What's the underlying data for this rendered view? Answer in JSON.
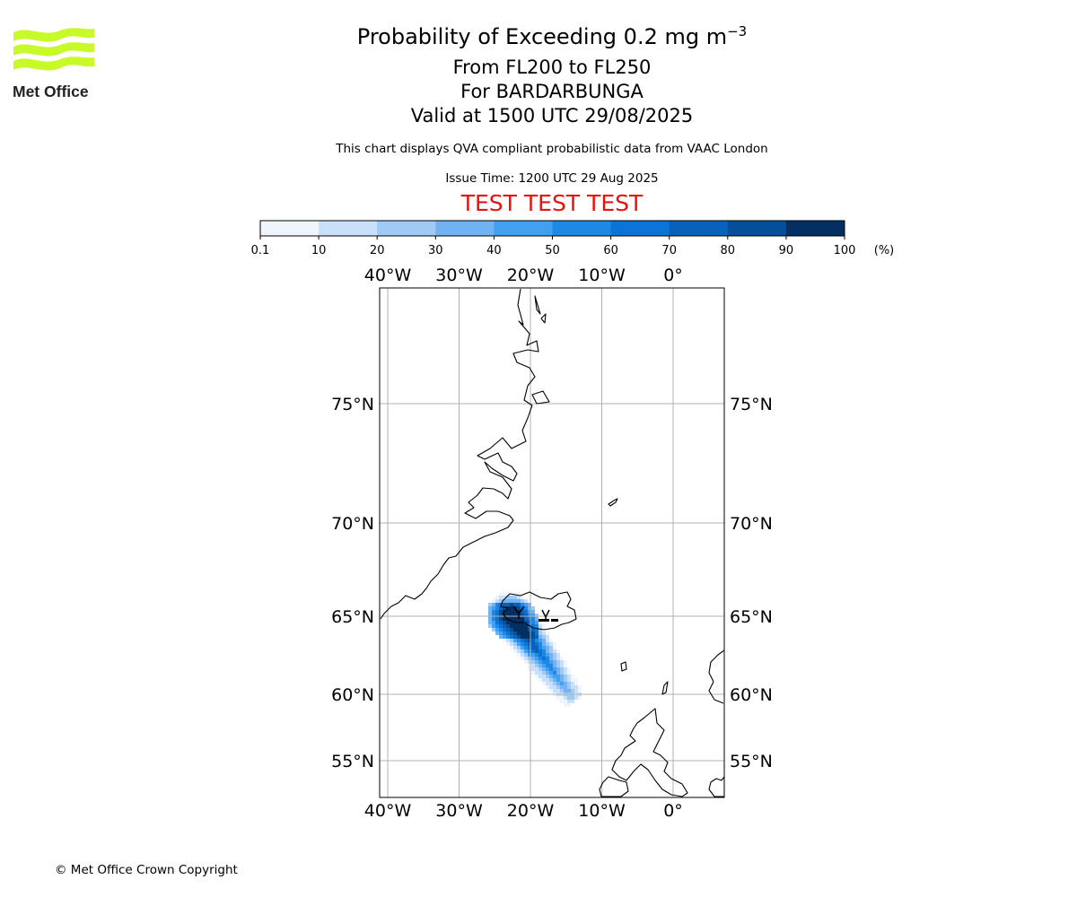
{
  "logo": {
    "text": "Met Office",
    "wave_color": "#c8fa2a"
  },
  "header": {
    "title_prefix": "Probability of Exceeding 0.2 mg m",
    "title_exponent": "−3",
    "levels": "From FL200 to FL250",
    "volcano": "For BARDARBUNGA",
    "valid": "Valid at 1500 UTC 29/08/2025",
    "description": "This chart displays QVA compliant probabilistic data from VAAC London",
    "issue_time": "Issue Time: 1200 UTC 29 Aug 2025",
    "test_banner": "TEST TEST TEST"
  },
  "colorbar": {
    "ticks": [
      "0.1",
      "10",
      "20",
      "30",
      "40",
      "50",
      "60",
      "70",
      "80",
      "90",
      "100"
    ],
    "unit": "(%)",
    "colors": [
      "#eef5fd",
      "#c8e0f8",
      "#9fcaf5",
      "#71b3f2",
      "#42a0f1",
      "#1e88e5",
      "#0c74d6",
      "#0862bc",
      "#054e99",
      "#042f63"
    ]
  },
  "map": {
    "lon_labels": [
      "40°W",
      "30°W",
      "20°W",
      "10°W",
      "0°"
    ],
    "lon_values": [
      -40,
      -30,
      -20,
      -10,
      0
    ],
    "lat_labels": [
      "75°N",
      "70°N",
      "65°N",
      "60°N",
      "55°N"
    ],
    "lat_values": [
      75,
      70,
      65,
      60,
      55
    ],
    "grid": true,
    "volcano_lon": -17.5,
    "volcano_lat": 64.6
  },
  "footer": {
    "copyright": "© Met Office Crown Copyright"
  }
}
